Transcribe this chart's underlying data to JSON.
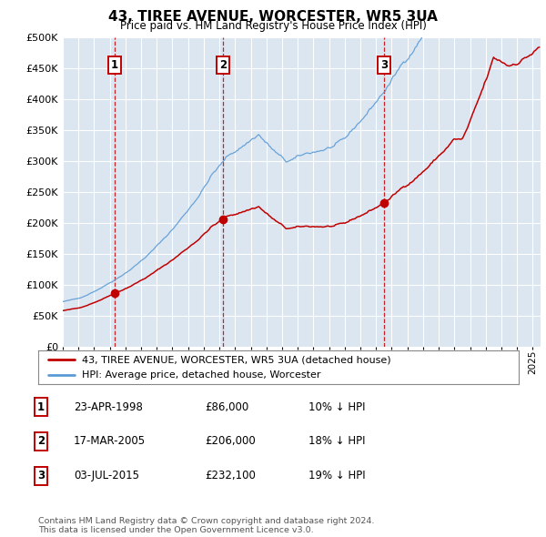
{
  "title": "43, TIREE AVENUE, WORCESTER, WR5 3UA",
  "subtitle": "Price paid vs. HM Land Registry's House Price Index (HPI)",
  "ylabel_ticks": [
    "£0",
    "£50K",
    "£100K",
    "£150K",
    "£200K",
    "£250K",
    "£300K",
    "£350K",
    "£400K",
    "£450K",
    "£500K"
  ],
  "y_values": [
    0,
    50000,
    100000,
    150000,
    200000,
    250000,
    300000,
    350000,
    400000,
    450000,
    500000
  ],
  "xlim_start": 1995.0,
  "xlim_end": 2025.5,
  "ylim": [
    0,
    500000
  ],
  "sale_dates": [
    1998.31,
    2005.21,
    2015.5
  ],
  "sale_prices": [
    86000,
    206000,
    232100
  ],
  "sale_labels": [
    "1",
    "2",
    "3"
  ],
  "legend_line1": "43, TIREE AVENUE, WORCESTER, WR5 3UA (detached house)",
  "legend_line2": "HPI: Average price, detached house, Worcester",
  "table_rows": [
    [
      "1",
      "23-APR-1998",
      "£86,000",
      "10% ↓ HPI"
    ],
    [
      "2",
      "17-MAR-2005",
      "£206,000",
      "18% ↓ HPI"
    ],
    [
      "3",
      "03-JUL-2015",
      "£232,100",
      "19% ↓ HPI"
    ]
  ],
  "footnote": "Contains HM Land Registry data © Crown copyright and database right 2024.\nThis data is licensed under the Open Government Licence v3.0.",
  "hpi_color": "#5b9bd5",
  "sold_color": "#c00000",
  "bg_color": "#dce6f1",
  "plot_bg": "#ffffff"
}
